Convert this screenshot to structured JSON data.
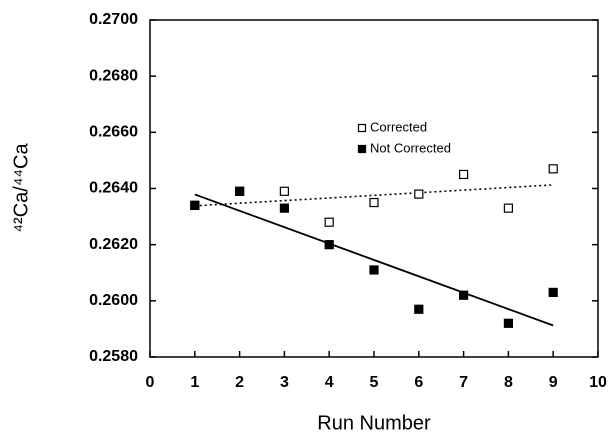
{
  "chart_data": {
    "type": "scatter",
    "x_label": "Run Number",
    "y_label": "⁴²Ca/⁴⁴Ca",
    "xlim": [
      0,
      10
    ],
    "xticks": [
      0,
      1,
      2,
      3,
      4,
      5,
      6,
      7,
      8,
      9,
      10
    ],
    "ylim": [
      0.258,
      0.27
    ],
    "yticks": [
      {
        "value": 0.258,
        "label": "0.2580"
      },
      {
        "value": 0.26,
        "label": "0.2600"
      },
      {
        "value": 0.262,
        "label": "0.2620"
      },
      {
        "value": 0.264,
        "label": "0.2640"
      },
      {
        "value": 0.266,
        "label": "0.2660"
      },
      {
        "value": 0.268,
        "label": "0.2680"
      },
      {
        "value": 0.27,
        "label": "0.2700"
      }
    ],
    "grid": false,
    "legend": "upper right",
    "series": [
      {
        "name": "Corrected",
        "color": "#000000",
        "marker": "open-square",
        "trendline": "dotted",
        "x": [
          1,
          2,
          3,
          4,
          5,
          6,
          7,
          8,
          9
        ],
        "values": [
          0.2634,
          0.2639,
          0.2639,
          0.2628,
          0.2635,
          0.2638,
          0.2645,
          0.2633,
          0.2647
        ]
      },
      {
        "name": "Not Corrected",
        "color": "#000000",
        "marker": "filled-square",
        "trendline": "solid",
        "x": [
          1,
          2,
          3,
          4,
          5,
          6,
          7,
          8,
          9
        ],
        "values": [
          0.2634,
          0.2639,
          0.2633,
          0.262,
          0.2611,
          0.2597,
          0.2602,
          0.2592,
          0.2603
        ]
      }
    ]
  }
}
